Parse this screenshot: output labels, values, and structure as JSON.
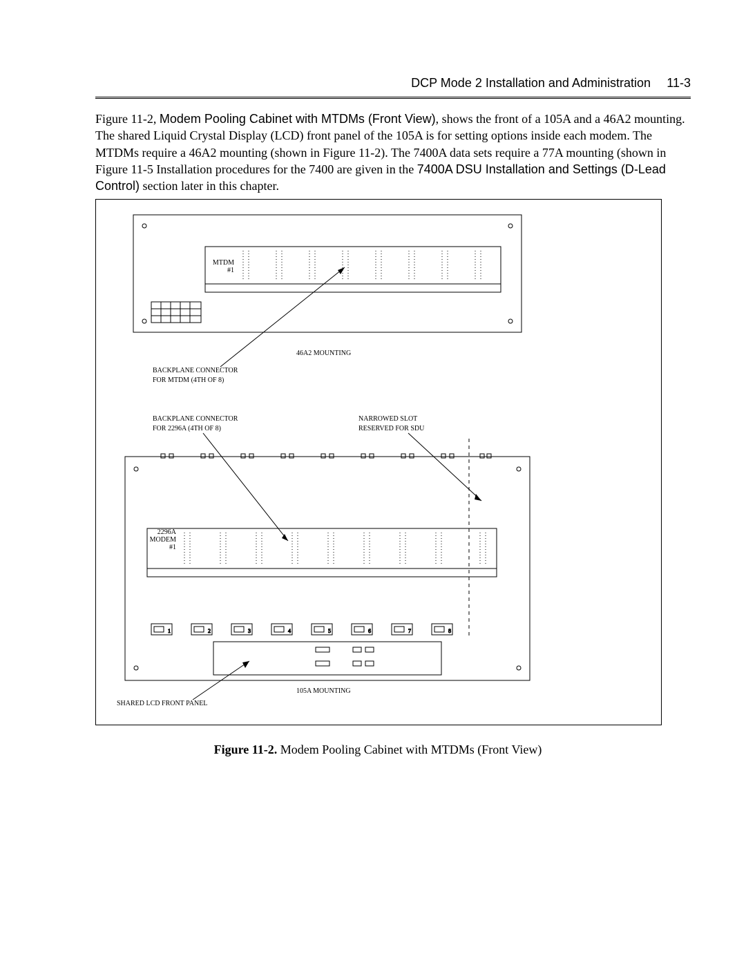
{
  "header": {
    "title": "DCP Mode 2 Installation and Administration",
    "page_number": "11-3"
  },
  "paragraph": {
    "p1a": "Figure 11-2, ",
    "p1b": "Modem Pooling Cabinet with MTDMs (Front View)",
    "p1c": ", shows the front of a 105A and a 46A2 mounting.  The shared Liquid Crystal Display (LCD) front panel of the 105A is for setting options inside each modem.  The MTDMs require a 46A2 mounting (shown in Figure 11-2).  The 7400A data sets require a 77A mounting (shown in Figure 11-5 Installation procedures for the 7400 are given in the ",
    "p1d": "7400A DSU Installation and Settings (D-Lead Control)",
    "p1e": " section later in this chapter."
  },
  "figure_caption": {
    "label": "Figure 11-2.",
    "text": "  Modem Pooling Cabinet with MTDMs (Front View)"
  },
  "diagram": {
    "upper_slot_label_1": "MTDM",
    "upper_slot_label_2": "#1",
    "label_46a2": "46A2 MOUNTING",
    "label_bp_mtdm_1": "BACKPLANE CONNECTOR",
    "label_bp_mtdm_2": "FOR MTDM (4TH OF 8)",
    "label_bp_2296_1": "BACKPLANE CONNECTOR",
    "label_bp_2296_2": "FOR 2296A (4TH OF 8)",
    "label_narrow_1": "NARROWED SLOT",
    "label_narrow_2": "RESERVED FOR SDU",
    "lower_slot_label_1": "2296A",
    "lower_slot_label_2": "MODEM",
    "lower_slot_label_3": "#1",
    "label_105a": "105A MOUNTING",
    "label_lcd": "SHARED LCD FRONT PANEL",
    "btn_labels": [
      "1",
      "2",
      "3",
      "4",
      "5",
      "6",
      "7",
      "8"
    ],
    "colors": {
      "stroke": "#000",
      "bg": "#fff"
    }
  }
}
